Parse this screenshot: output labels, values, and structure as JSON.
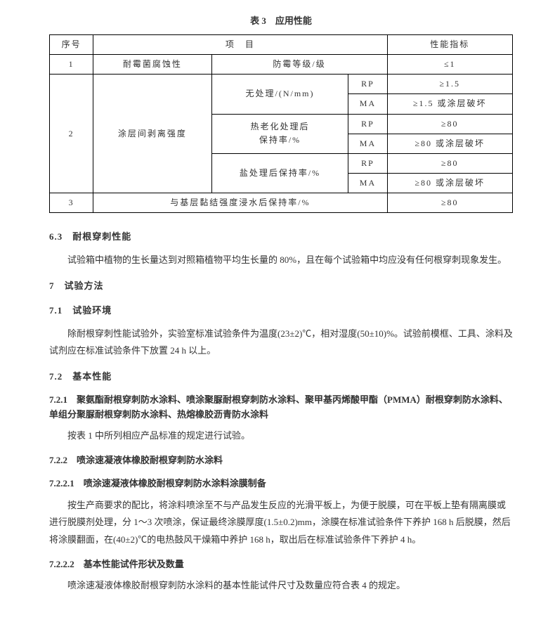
{
  "table": {
    "title": "表 3　应用性能",
    "headers": [
      "序号",
      "项　目",
      "性能指标"
    ],
    "row1": {
      "seq": "1",
      "item1": "耐霉菌腐蚀性",
      "item2": "防霉等级/级",
      "val": "≤1"
    },
    "row2": {
      "seq": "2",
      "item1": "涂层间剥离强度",
      "sub1": {
        "label": "无处理/(N/mm)",
        "rp": "RP",
        "rp_val": "≥1.5",
        "ma": "MA",
        "ma_val": "≥1.5 或涂层破坏"
      },
      "sub2": {
        "label": "热老化处理后\n保持率/%",
        "rp": "RP",
        "rp_val": "≥80",
        "ma": "MA",
        "ma_val": "≥80 或涂层破坏"
      },
      "sub3": {
        "label": "盐处理后保持率/%",
        "rp": "RP",
        "rp_val": "≥80",
        "ma": "MA",
        "ma_val": "≥80 或涂层破坏"
      }
    },
    "row3": {
      "seq": "3",
      "item": "与基层黏结强度浸水后保持率/%",
      "val": "≥80"
    }
  },
  "sections": {
    "s63_title": "6.3　耐根穿刺性能",
    "s63_p": "试验箱中植物的生长量达到对照箱植物平均生长量的 80%，且在每个试验箱中均应没有任何根穿刺现象发生。",
    "s7_title": "7　试验方法",
    "s71_title": "7.1　试验环境",
    "s71_p": "除耐根穿刺性能试验外，实验室标准试验条件为温度(23±2)℃，相对湿度(50±10)%。试验前模框、工具、涂料及试剂应在标准试验条件下放置 24 h 以上。",
    "s72_title": "7.2　基本性能",
    "s721_title": "7.2.1　聚氨酯耐根穿刺防水涂料、喷涂聚脲耐根穿刺防水涂料、聚甲基丙烯酸甲酯（PMMA）耐根穿刺防水涂料、单组分聚脲耐根穿刺防水涂料、热熔橡胶沥青防水涂料",
    "s721_p": "按表 1 中所列相应产品标准的规定进行试验。",
    "s722_title": "7.2.2　喷涂速凝液体橡胶耐根穿刺防水涂料",
    "s7221_title": "7.2.2.1　喷涂速凝液体橡胶耐根穿刺防水涂料涂膜制备",
    "s7221_p": "按生产商要求的配比，将涂料喷涂至不与产品发生反应的光滑平板上，为便于脱膜，可在平板上垫有隔离膜或进行脱膜剂处理，分 1～3 次喷涂，保证最终涂膜厚度(1.5±0.2)mm，涂膜在标准试验条件下养护 168 h 后脱膜，然后将涂膜翻面，在(40±2)℃的电热鼓风干燥箱中养护 168 h，取出后在标准试验条件下养护 4 h。",
    "s7222_title": "7.2.2.2　基本性能试件形状及数量",
    "s7222_p": "喷涂速凝液体橡胶耐根穿刺防水涂料的基本性能试件尺寸及数量应符合表 4 的规定。"
  }
}
